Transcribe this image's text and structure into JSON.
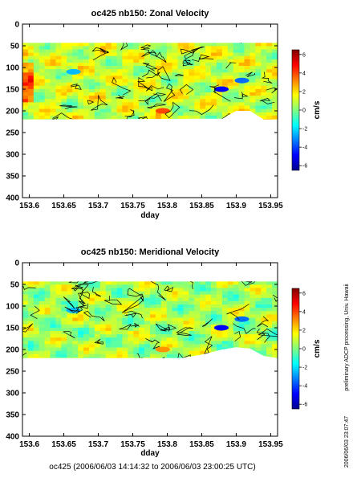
{
  "chart_data": [
    {
      "type": "heatmap",
      "title": "oc425 nb150: Zonal Velocity",
      "xlabel": "dday",
      "ylabel": "",
      "xlim": [
        153.59,
        153.96
      ],
      "ylim": [
        400,
        0
      ],
      "x_ticks": [
        "153.6",
        "153.65",
        "153.7",
        "153.75",
        "153.8",
        "153.85",
        "153.9",
        "153.95"
      ],
      "y_ticks": [
        "0",
        "50",
        "100",
        "150",
        "200",
        "250",
        "300",
        "350",
        "400"
      ],
      "colorbar": {
        "label": "cm/s",
        "min": -6.5,
        "max": 6.5,
        "ticks": [
          "6",
          "4",
          "2",
          "0",
          "-2",
          "-4",
          "-6"
        ]
      },
      "depth_top": 43,
      "bottom_depth_profile": {
        "dday": [
          153.59,
          153.88,
          153.9,
          153.92,
          153.94,
          153.96
        ],
        "depth": [
          220,
          218,
          200,
          200,
          220,
          220
        ]
      },
      "value_range_shown": [
        -5,
        5
      ],
      "dominant_value": 1
    },
    {
      "type": "heatmap",
      "title": "oc425 nb150: Meridional Velocity",
      "xlabel": "dday",
      "ylabel": "",
      "xlim": [
        153.59,
        153.96
      ],
      "ylim": [
        400,
        0
      ],
      "x_ticks": [
        "153.6",
        "153.65",
        "153.7",
        "153.75",
        "153.8",
        "153.85",
        "153.9",
        "153.95"
      ],
      "y_ticks": [
        "0",
        "50",
        "100",
        "150",
        "200",
        "250",
        "300",
        "350",
        "400"
      ],
      "colorbar": {
        "label": "cm/s",
        "min": -6.5,
        "max": 6.5,
        "ticks": [
          "6",
          "4",
          "2",
          "0",
          "-2",
          "-4",
          "-6"
        ]
      },
      "depth_top": 43,
      "bottom_depth_profile": {
        "dday": [
          153.59,
          153.82,
          153.85,
          153.88,
          153.9,
          153.92,
          153.94,
          153.96
        ],
        "depth": [
          220,
          220,
          212,
          200,
          195,
          198,
          215,
          220
        ]
      },
      "value_range_shown": [
        -5,
        4
      ],
      "dominant_value": 1
    }
  ],
  "footer": "oc425 (2006/06/03 14:14:32 to 2006/06/03 23:00:25 UTC)",
  "side_note": "preliminary ADCP processing,   Univ. Hawaii",
  "timestamp": "2006/06/03 23:07:47"
}
